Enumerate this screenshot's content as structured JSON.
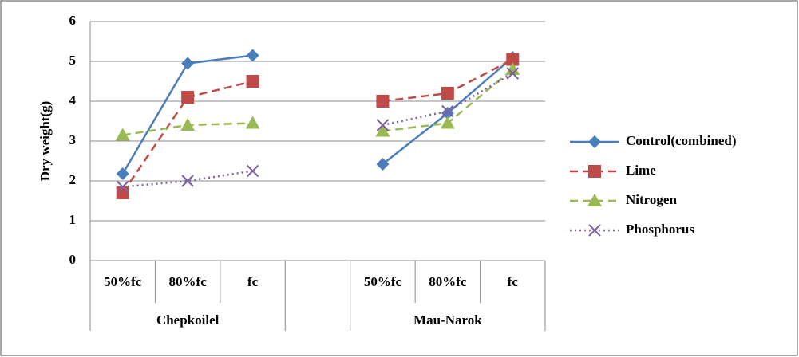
{
  "chart_data": {
    "type": "line",
    "y_label": "Dry weight(g)",
    "categories": [
      "50%fc",
      "80%fc",
      "fc",
      null,
      "50%fc",
      "80%fc",
      "fc"
    ],
    "group_labels": [
      "Chepkoilel",
      "Mau-Narok"
    ],
    "series": [
      {
        "name": "Control(combined)",
        "color": "#4a7ebb",
        "marker": "diamond",
        "dash": "solid",
        "values": [
          2.18,
          4.95,
          5.15,
          null,
          2.42,
          3.7,
          5.1
        ]
      },
      {
        "name": "Lime",
        "color": "#be4b48",
        "marker": "square",
        "dash": "dashed",
        "values": [
          1.7,
          4.1,
          4.5,
          null,
          4.0,
          4.2,
          5.05
        ]
      },
      {
        "name": "Nitrogen",
        "color": "#98b954",
        "marker": "triangle",
        "dash": "dashed",
        "values": [
          3.15,
          3.4,
          3.45,
          null,
          3.25,
          3.45,
          4.8
        ]
      },
      {
        "name": "Phosphorus",
        "color": "#7d60a0",
        "marker": "x",
        "dash": "dotted",
        "values": [
          1.85,
          2.0,
          2.25,
          null,
          3.4,
          3.75,
          4.7
        ]
      }
    ],
    "ylim": [
      0,
      6
    ],
    "yticks": [
      0,
      1,
      2,
      3,
      4,
      5,
      6
    ],
    "grid": true,
    "legend": "right"
  }
}
